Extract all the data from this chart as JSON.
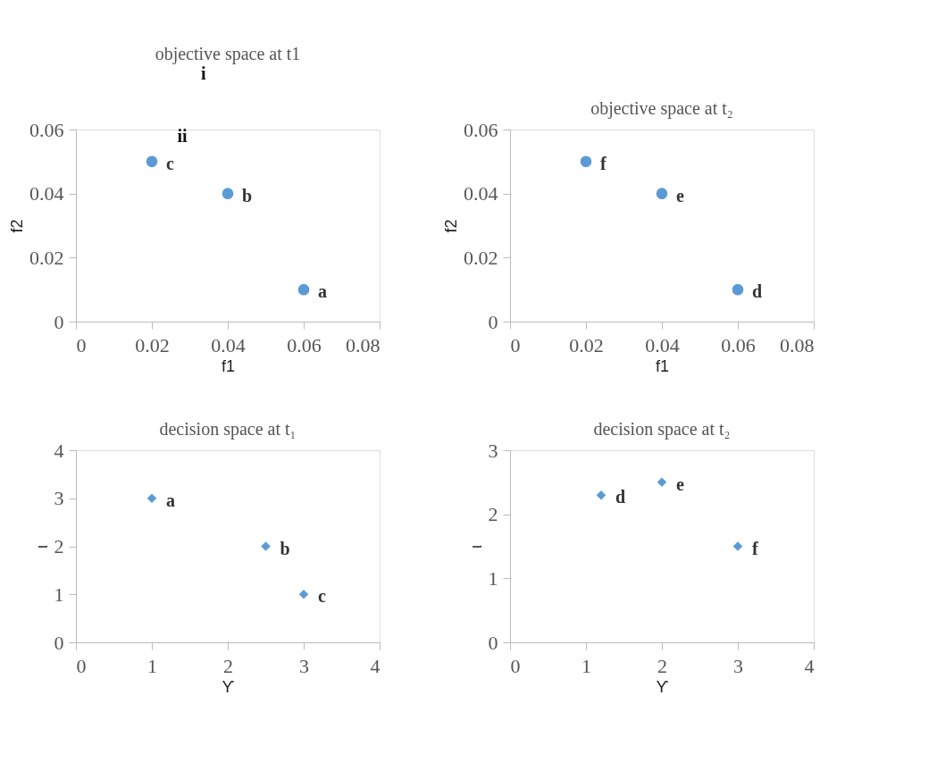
{
  "chart_data": [
    {
      "type": "scatter",
      "title": "objective space at t1",
      "xlabel": "f1",
      "ylabel": "f2",
      "marker": "circle",
      "grid": false,
      "annotations": [
        "i",
        "ii"
      ],
      "xlim": [
        0,
        0.08
      ],
      "xticks": [
        0,
        0.02,
        0.04,
        0.06,
        0.08
      ],
      "ylim": [
        0,
        0.06
      ],
      "yticks": [
        0,
        0.02,
        0.04,
        0.06
      ],
      "series": [
        {
          "color": "#5b9bd5",
          "x": [
            0.06,
            0.04,
            0.02
          ],
          "values": [
            0.01,
            0.04,
            0.05
          ],
          "value_labels": [
            "a",
            "b",
            "c"
          ]
        }
      ]
    },
    {
      "type": "scatter",
      "title": "decision space at t₁",
      "xlabel": "ϒ",
      "ylabel": "ι",
      "marker": "diamond",
      "grid": false,
      "xlim": [
        0,
        4
      ],
      "xticks": [
        0,
        1,
        2,
        3,
        4
      ],
      "ylim": [
        0,
        4
      ],
      "yticks": [
        0,
        1,
        2,
        3,
        4
      ],
      "series": [
        {
          "color": "#5b9bd5",
          "x": [
            1,
            2.5,
            3
          ],
          "values": [
            3,
            2,
            1
          ],
          "value_labels": [
            "a",
            "b",
            "c"
          ]
        }
      ]
    },
    {
      "type": "scatter",
      "title": "objective space at t₂",
      "xlabel": "f1",
      "ylabel": "f2",
      "marker": "circle",
      "grid": false,
      "xlim": [
        0,
        0.08
      ],
      "xticks": [
        0,
        0.02,
        0.04,
        0.06,
        0.08
      ],
      "ylim": [
        0,
        0.06
      ],
      "yticks": [
        0,
        0.02,
        0.04,
        0.06
      ],
      "series": [
        {
          "color": "#5b9bd5",
          "x": [
            0.06,
            0.04,
            0.02
          ],
          "values": [
            0.01,
            0.04,
            0.05
          ],
          "value_labels": [
            "d",
            "e",
            "f"
          ]
        }
      ]
    },
    {
      "type": "scatter",
      "title": "decision space at t₂",
      "xlabel": "ϒ",
      "ylabel": "ι",
      "marker": "diamond",
      "grid": false,
      "xlim": [
        0,
        4
      ],
      "xticks": [
        0,
        1,
        2,
        3,
        4
      ],
      "ylim": [
        0,
        3
      ],
      "yticks": [
        0,
        1,
        2,
        3
      ],
      "series": [
        {
          "color": "#5b9bd5",
          "x": [
            1.2,
            2,
            3
          ],
          "values": [
            2.3,
            2.5,
            1.5
          ],
          "value_labels": [
            "d",
            "e",
            "f"
          ]
        }
      ]
    }
  ]
}
